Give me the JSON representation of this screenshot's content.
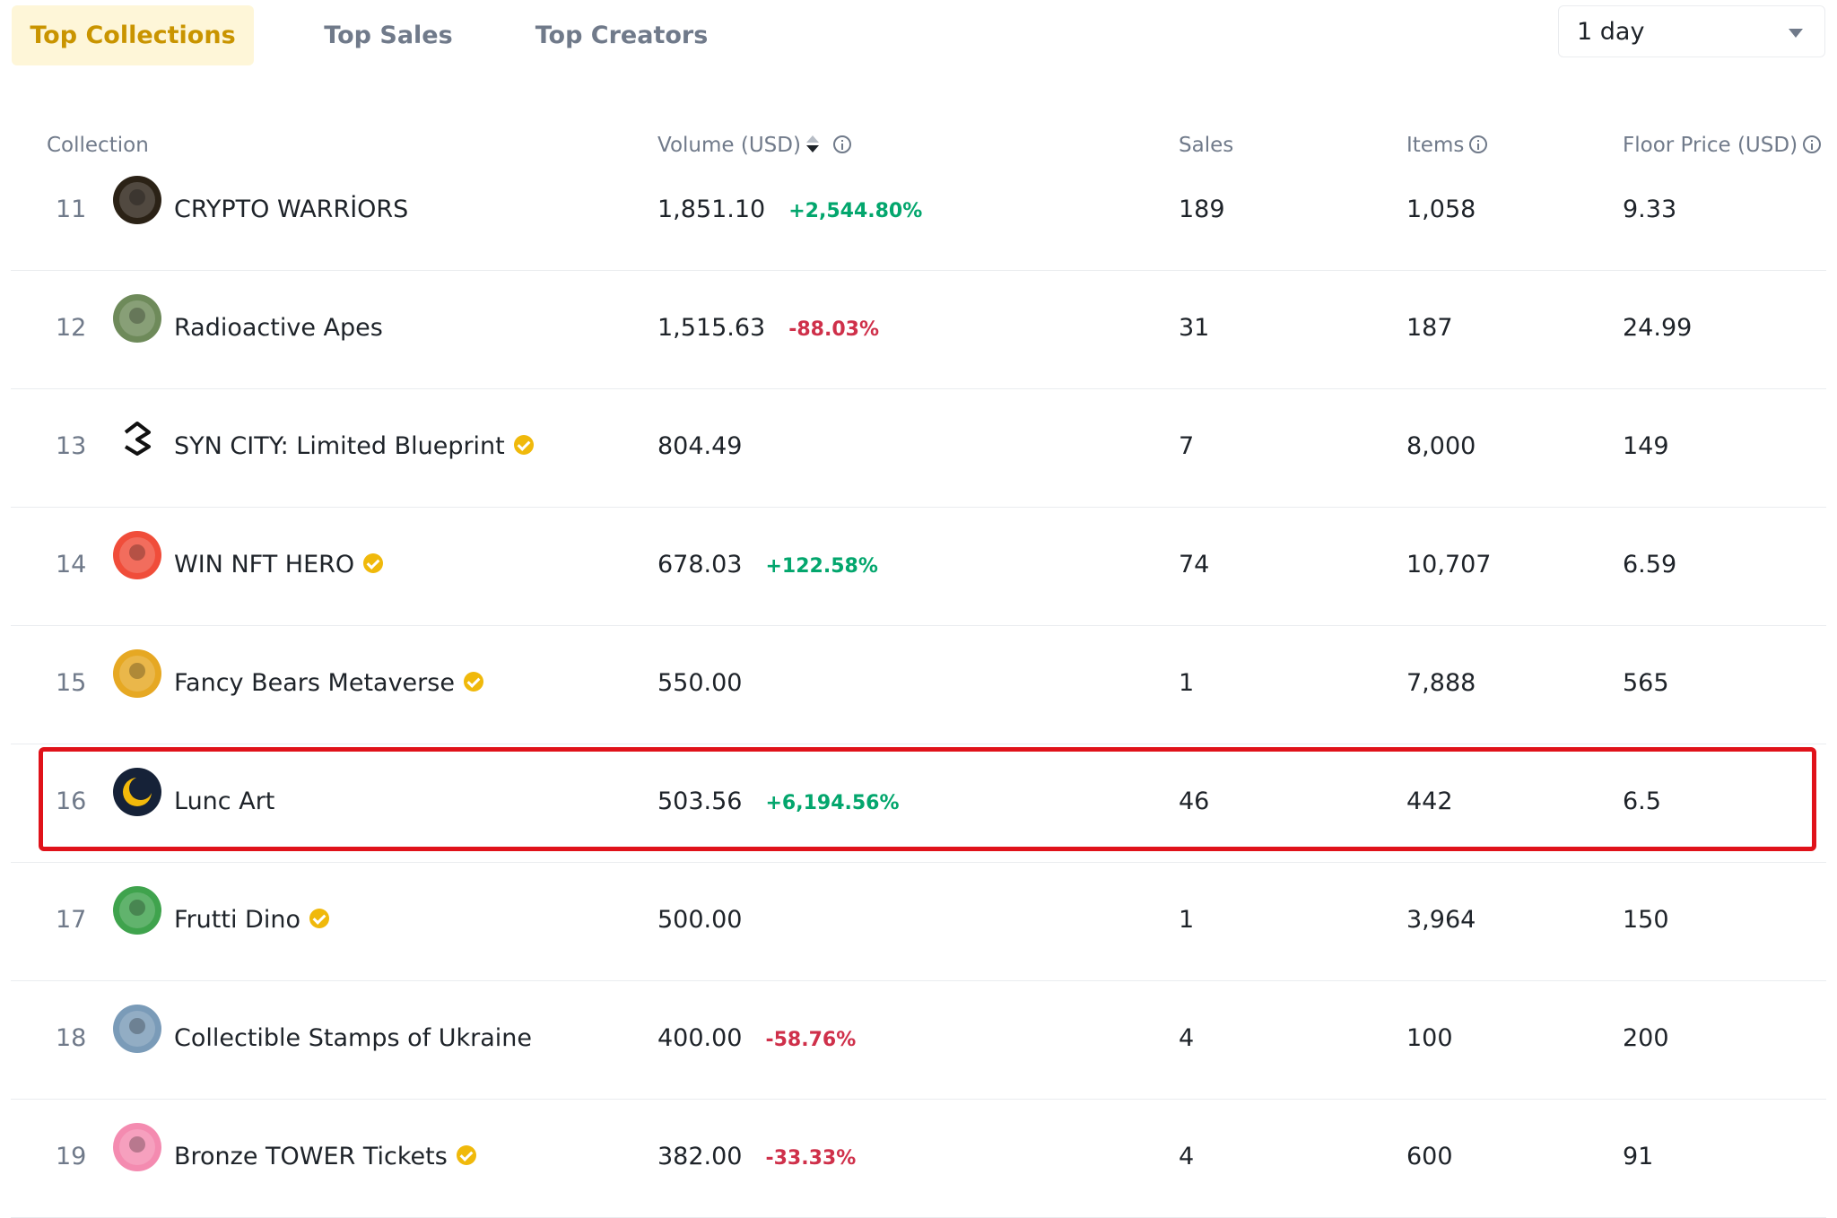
{
  "tabs": [
    "Top Collections",
    "Top Sales",
    "Top Creators"
  ],
  "active_tab": "Top Collections",
  "period_select": {
    "value": "1 day"
  },
  "columns": {
    "collection": "Collection",
    "volume": "Volume (USD)",
    "sales": "Sales",
    "items": "Items",
    "floor": "Floor Price (USD)"
  },
  "rows": [
    {
      "rank": "11",
      "name": "CRYPTO WARRİORS",
      "verified": false,
      "volume": "1,851.10",
      "change": "+2,544.80%",
      "direction": "up",
      "sales": "189",
      "items": "1,058",
      "floor": "9.33",
      "avatar_color": "#2b2216"
    },
    {
      "rank": "12",
      "name": "Radioactive Apes",
      "verified": false,
      "volume": "1,515.63",
      "change": "-88.03%",
      "direction": "down",
      "sales": "31",
      "items": "187",
      "floor": "24.99",
      "avatar_color": "#6e8a5a"
    },
    {
      "rank": "13",
      "name": "SYN CITY: Limited Blueprint",
      "verified": true,
      "volume": "804.49",
      "change": "",
      "direction": "none",
      "sales": "7",
      "items": "8,000",
      "floor": "149",
      "avatar_color": "#ffffff"
    },
    {
      "rank": "14",
      "name": "WIN NFT HERO",
      "verified": true,
      "volume": "678.03",
      "change": "+122.58%",
      "direction": "up",
      "sales": "74",
      "items": "10,707",
      "floor": "6.59",
      "avatar_color": "#f04d3a"
    },
    {
      "rank": "15",
      "name": "Fancy Bears Metaverse",
      "verified": true,
      "volume": "550.00",
      "change": "",
      "direction": "none",
      "sales": "1",
      "items": "7,888",
      "floor": "565",
      "avatar_color": "#e6a823"
    },
    {
      "rank": "16",
      "name": "Lunc Art",
      "verified": false,
      "volume": "503.56",
      "change": "+6,194.56%",
      "direction": "up",
      "sales": "46",
      "items": "442",
      "floor": "6.5",
      "avatar_color": "#162238"
    },
    {
      "rank": "17",
      "name": "Frutti Dino",
      "verified": true,
      "volume": "500.00",
      "change": "",
      "direction": "none",
      "sales": "1",
      "items": "3,964",
      "floor": "150",
      "avatar_color": "#3fa34d"
    },
    {
      "rank": "18",
      "name": "Collectible Stamps of Ukraine",
      "verified": false,
      "volume": "400.00",
      "change": "-58.76%",
      "direction": "down",
      "sales": "4",
      "items": "100",
      "floor": "200",
      "avatar_color": "#7a9bb8"
    },
    {
      "rank": "19",
      "name": "Bronze TOWER Tickets",
      "verified": true,
      "volume": "382.00",
      "change": "-33.33%",
      "direction": "down",
      "sales": "4",
      "items": "600",
      "floor": "91",
      "avatar_color": "#f48bb0"
    }
  ],
  "highlighted_row": "16",
  "colors": {
    "accent": "#c99400",
    "accent_bg": "#fef6d8",
    "positive": "#03a66d",
    "negative": "#cf304a",
    "highlight_border": "#e0121a"
  }
}
